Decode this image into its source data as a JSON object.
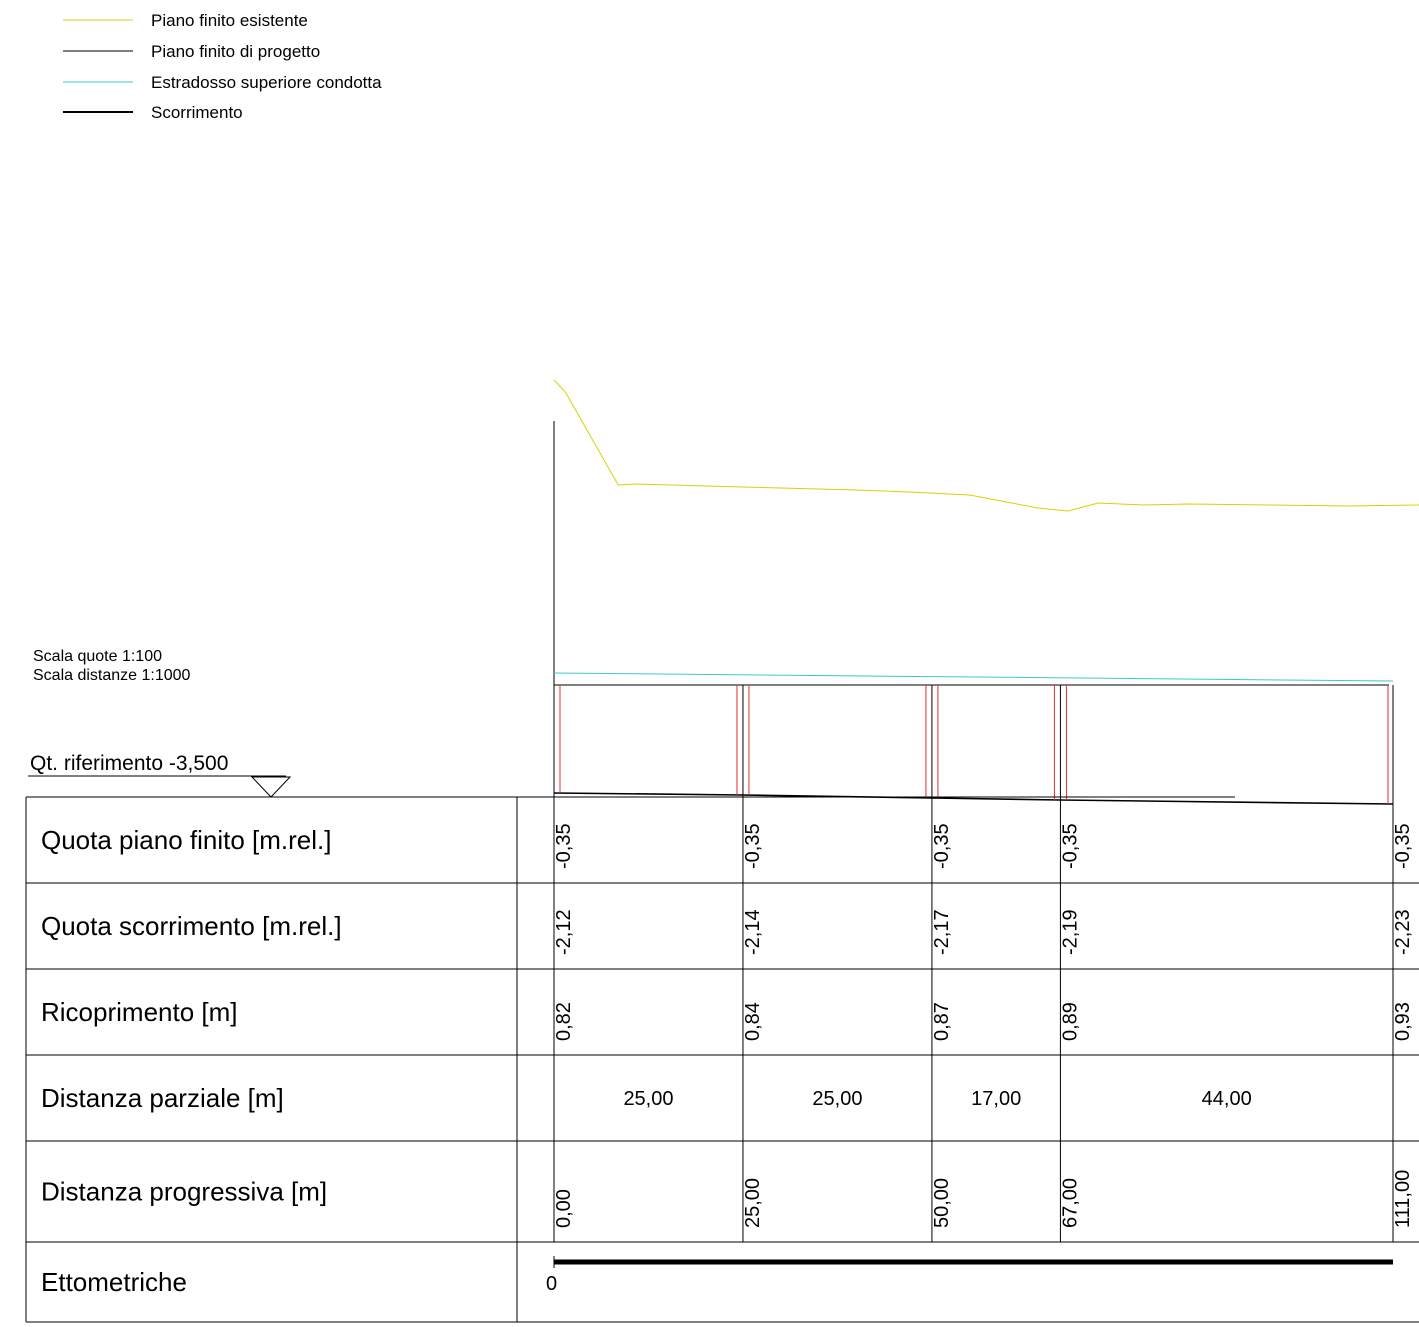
{
  "legend": [
    {
      "label": "Piano finito esistente",
      "color": "#d4d400",
      "weight": 1
    },
    {
      "label": "Piano finito di progetto",
      "color": "#000000",
      "weight": 1
    },
    {
      "label": "Estradosso superiore condotta",
      "color": "#3fc8c8",
      "weight": 1
    },
    {
      "label": "Scorrimento",
      "color": "#000000",
      "weight": 2
    }
  ],
  "scale": {
    "quote": "Scala quote 1:100",
    "distanze": "Scala distanze 1:1000"
  },
  "reference": {
    "label": "Qt. riferimento -3,500"
  },
  "colors": {
    "existing_ground": "#d4d400",
    "pipe_crown": "#3fc8c8",
    "manhole": "#e03030",
    "lines": "#000000"
  },
  "table": {
    "rows": [
      {
        "key": "quota_pf",
        "title": "Quota piano finito [m.rel.]"
      },
      {
        "key": "quota_scorr",
        "title": "Quota scorrimento [m.rel.]"
      },
      {
        "key": "ricoprimento",
        "title": "Ricoprimento [m]"
      },
      {
        "key": "dist_parz",
        "title": "Distanza parziale [m]"
      },
      {
        "key": "dist_prog",
        "title": "Distanza progressiva [m]"
      },
      {
        "key": "ettometriche",
        "title": "Ettometriche"
      }
    ]
  },
  "profile": {
    "stations": [
      0,
      25,
      50,
      67,
      111
    ],
    "quota_pf": [
      "-0,35",
      "-0,35",
      "-0,35",
      "-0,35",
      "-0,35"
    ],
    "quota_scorr": [
      "-2,12",
      "-2,14",
      "-2,17",
      "-2,19",
      "-2,23"
    ],
    "ricoprimento": [
      "0,82",
      "0,84",
      "0,87",
      "0,89",
      "0,93"
    ],
    "dist_parz": [
      "25,00",
      "25,00",
      "17,00",
      "44,00"
    ],
    "dist_prog": [
      "0,00",
      "25,00",
      "50,00",
      "67,00",
      "111,00"
    ],
    "ettometriche": [
      "0"
    ],
    "existing_ground": {
      "x": [
        0,
        1.5,
        8.5,
        11,
        20,
        30,
        40,
        47,
        55,
        64,
        68,
        72,
        78,
        84,
        95,
        105,
        115,
        120
      ],
      "y": [
        -1.6,
        -1.72,
        -2.65,
        -2.64,
        -2.66,
        -2.68,
        -2.7,
        -2.72,
        -2.75,
        -2.88,
        -2.91,
        -2.83,
        -2.85,
        -2.84,
        -2.85,
        -2.86,
        -2.85,
        -2.84
      ]
    },
    "pipe_crown": {
      "x": [
        0,
        111
      ],
      "y": [
        -3.5,
        -3.58
      ]
    },
    "design_level": -2.38
  }
}
